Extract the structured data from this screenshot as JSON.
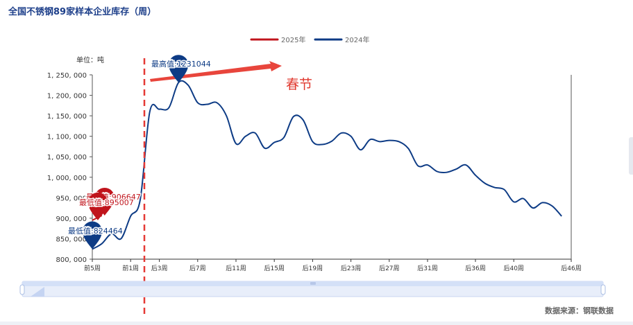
{
  "title": "全国不锈钢89家样本企业库存（周）",
  "source": "数据来源：钢联数据",
  "chart_data": {
    "type": "line",
    "unit_label": "单位：吨",
    "annotation": "春节",
    "x_tick_labels": [
      "前5周",
      "前1周",
      "后3周",
      "后7周",
      "后11周",
      "后15周",
      "后19周",
      "后23周",
      "后27周",
      "后31周",
      "后36周",
      "后40周",
      "后46周"
    ],
    "ylim": [
      800000,
      1250000
    ],
    "y_ticks": [
      800000,
      850000,
      900000,
      950000,
      1000000,
      1050000,
      1100000,
      1150000,
      1200000,
      1250000
    ],
    "y_tick_labels": [
      "800, 000",
      "850, 000",
      "900, 000",
      "950, 000",
      "1, 000, 000",
      "1, 050, 000",
      "1, 100, 000",
      "1, 150, 000",
      "1, 200, 000",
      "1, 250, 000"
    ],
    "legend_position": "top-center",
    "series": [
      {
        "name": "2025年",
        "color": "#c0141c",
        "values": [
          [
            "前5周",
            895007
          ],
          [
            "前4周",
            906647
          ]
        ]
      },
      {
        "name": "2024年",
        "color": "#0d3b85",
        "values": [
          [
            "前5周",
            824464
          ],
          [
            "前4周",
            838000
          ],
          [
            "前3周",
            862000
          ],
          [
            "前2周",
            850000
          ],
          [
            "前1周",
            905000
          ],
          [
            "后1周",
            945000
          ],
          [
            "后2周",
            1160000
          ],
          [
            "后3周",
            1166000
          ],
          [
            "后4周",
            1170000
          ],
          [
            "后5周",
            1231044
          ],
          [
            "后6周",
            1225000
          ],
          [
            "后7周",
            1182000
          ],
          [
            "后8周",
            1178000
          ],
          [
            "后9周",
            1182000
          ],
          [
            "后10周",
            1150000
          ],
          [
            "后11周",
            1082000
          ],
          [
            "后12周",
            1100000
          ],
          [
            "后13周",
            1108000
          ],
          [
            "后14周",
            1071000
          ],
          [
            "后15周",
            1085000
          ],
          [
            "后16周",
            1097000
          ],
          [
            "后17周",
            1148000
          ],
          [
            "后18周",
            1140000
          ],
          [
            "后19周",
            1087000
          ],
          [
            "后20周",
            1080000
          ],
          [
            "后21周",
            1088000
          ],
          [
            "后22周",
            1108000
          ],
          [
            "后23周",
            1100000
          ],
          [
            "后24周",
            1067000
          ],
          [
            "后25周",
            1092000
          ],
          [
            "后26周",
            1087000
          ],
          [
            "后27周",
            1090000
          ],
          [
            "后28周",
            1087000
          ],
          [
            "后29周",
            1070000
          ],
          [
            "后30周",
            1028000
          ],
          [
            "后31周",
            1030000
          ],
          [
            "后32周",
            1014000
          ],
          [
            "后33周",
            1012000
          ],
          [
            "后34周",
            1020000
          ],
          [
            "后35周",
            1030000
          ],
          [
            "后36周",
            1005000
          ],
          [
            "后37周",
            985000
          ],
          [
            "后38周",
            975000
          ],
          [
            "后39周",
            970000
          ],
          [
            "后40周",
            940000
          ],
          [
            "后41周",
            948000
          ],
          [
            "后42周",
            925000
          ],
          [
            "后43周",
            938000
          ],
          [
            "后44周",
            930000
          ],
          [
            "后45周",
            905000
          ]
        ]
      }
    ],
    "markers": [
      {
        "series": "2024年",
        "kind": "max",
        "label": "最高值:1231044",
        "x": "后5周",
        "value": 1231044
      },
      {
        "series": "2024年",
        "kind": "min",
        "label": "最低值:824464",
        "x": "前5周",
        "value": 824464
      },
      {
        "series": "2025年",
        "kind": "max",
        "label": "最高值:906647",
        "x": "前4周",
        "value": 906647
      },
      {
        "series": "2025年",
        "kind": "min",
        "label": "最低值:895007",
        "x": "前5周",
        "value": 895007
      }
    ]
  }
}
